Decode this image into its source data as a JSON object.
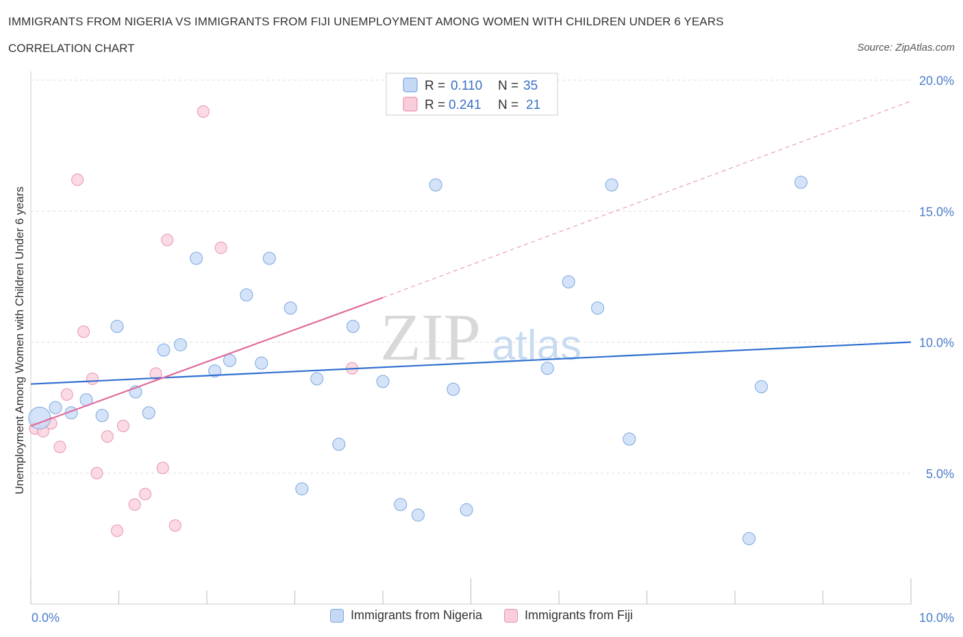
{
  "header": {
    "title": "IMMIGRANTS FROM NIGERIA VS IMMIGRANTS FROM FIJI UNEMPLOYMENT AMONG WOMEN WITH CHILDREN UNDER 6 YEARS",
    "subtitle": "CORRELATION CHART",
    "source": "Source: ZipAtlas.com"
  },
  "watermark": {
    "zip": "ZIP",
    "atlas": "atlas"
  },
  "legend_box": {
    "rows": [
      {
        "r_label": "R =",
        "r_value": "0.110",
        "n_label": "N =",
        "n_value": "35"
      },
      {
        "r_label": "R =",
        "r_value": "0.241",
        "n_label": "N =",
        "n_value": "21"
      }
    ]
  },
  "bottom_legend": {
    "items": [
      {
        "label": "Immigrants from Nigeria"
      },
      {
        "label": "Immigrants from Fiji"
      }
    ]
  },
  "colors": {
    "nigeria_fill": "#c5d9f5",
    "nigeria_stroke": "#7aa6e0",
    "nigeria_line": "#2f6fd0",
    "fiji_fill": "#f9cdd9",
    "fiji_stroke": "#e894ae",
    "fiji_line": "#e0699a",
    "grid": "#dddddd",
    "tick_text": "#4a7cc9"
  },
  "chart_data": {
    "type": "scatter",
    "title": "IMMIGRANTS FROM NIGERIA VS IMMIGRANTS FROM FIJI UNEMPLOYMENT AMONG WOMEN WITH CHILDREN UNDER 6 YEARS",
    "subtitle": "CORRELATION CHART",
    "xlabel": "",
    "ylabel": "Unemployment Among Women with Children Under 6 years",
    "xlim": [
      0,
      10
    ],
    "ylim": [
      0,
      20
    ],
    "x_tick_labels": [
      "0.0%",
      "10.0%"
    ],
    "y_tick_labels": [
      "5.0%",
      "10.0%",
      "15.0%",
      "20.0%"
    ],
    "y_tick_values": [
      5,
      10,
      15,
      20
    ],
    "grid": true,
    "legend_position": "top-center",
    "series": [
      {
        "name": "Immigrants from Nigeria",
        "color": "#7aa6e0",
        "R": 0.11,
        "N": 35,
        "trend": {
          "x": [
            0,
            10
          ],
          "y": [
            8.4,
            10.0
          ]
        },
        "points": [
          {
            "x": 0.1,
            "y": 7.1,
            "big": true
          },
          {
            "x": 0.28,
            "y": 7.5
          },
          {
            "x": 0.46,
            "y": 7.3
          },
          {
            "x": 0.63,
            "y": 7.8
          },
          {
            "x": 0.81,
            "y": 7.2
          },
          {
            "x": 0.98,
            "y": 10.6
          },
          {
            "x": 1.19,
            "y": 8.1
          },
          {
            "x": 1.34,
            "y": 7.3
          },
          {
            "x": 1.51,
            "y": 9.7
          },
          {
            "x": 1.7,
            "y": 9.9
          },
          {
            "x": 1.88,
            "y": 13.2
          },
          {
            "x": 2.09,
            "y": 8.9
          },
          {
            "x": 2.26,
            "y": 9.3
          },
          {
            "x": 2.45,
            "y": 11.8
          },
          {
            "x": 2.62,
            "y": 9.2
          },
          {
            "x": 2.71,
            "y": 13.2
          },
          {
            "x": 2.95,
            "y": 11.3
          },
          {
            "x": 3.08,
            "y": 4.4
          },
          {
            "x": 3.25,
            "y": 8.6
          },
          {
            "x": 3.5,
            "y": 6.1
          },
          {
            "x": 3.66,
            "y": 10.6
          },
          {
            "x": 4.0,
            "y": 8.5
          },
          {
            "x": 4.2,
            "y": 3.8
          },
          {
            "x": 4.4,
            "y": 3.4
          },
          {
            "x": 4.6,
            "y": 16.0
          },
          {
            "x": 4.8,
            "y": 8.2
          },
          {
            "x": 4.95,
            "y": 3.6
          },
          {
            "x": 5.87,
            "y": 9.0
          },
          {
            "x": 6.11,
            "y": 12.3
          },
          {
            "x": 6.44,
            "y": 11.3
          },
          {
            "x": 6.6,
            "y": 16.0
          },
          {
            "x": 6.8,
            "y": 6.3
          },
          {
            "x": 8.16,
            "y": 2.5
          },
          {
            "x": 8.3,
            "y": 8.3
          },
          {
            "x": 8.75,
            "y": 16.1
          }
        ]
      },
      {
        "name": "Immigrants from Fiji",
        "color": "#e894ae",
        "R": 0.241,
        "N": 21,
        "trend": {
          "x": [
            0,
            4.0
          ],
          "y": [
            6.8,
            11.7
          ]
        },
        "trend_extended": {
          "x": [
            4.0,
            10
          ],
          "y": [
            11.7,
            19.2
          ]
        },
        "points": [
          {
            "x": 0.05,
            "y": 6.7
          },
          {
            "x": 0.14,
            "y": 6.6
          },
          {
            "x": 0.23,
            "y": 6.9
          },
          {
            "x": 0.33,
            "y": 6.0
          },
          {
            "x": 0.41,
            "y": 8.0
          },
          {
            "x": 0.53,
            "y": 16.2
          },
          {
            "x": 0.6,
            "y": 10.4
          },
          {
            "x": 0.7,
            "y": 8.6
          },
          {
            "x": 0.75,
            "y": 5.0
          },
          {
            "x": 0.87,
            "y": 6.4
          },
          {
            "x": 0.98,
            "y": 2.8
          },
          {
            "x": 1.05,
            "y": 6.8
          },
          {
            "x": 1.18,
            "y": 3.8
          },
          {
            "x": 1.3,
            "y": 4.2
          },
          {
            "x": 1.42,
            "y": 8.8
          },
          {
            "x": 1.5,
            "y": 5.2
          },
          {
            "x": 1.55,
            "y": 13.9
          },
          {
            "x": 1.64,
            "y": 3.0
          },
          {
            "x": 1.96,
            "y": 18.8
          },
          {
            "x": 2.16,
            "y": 13.6
          },
          {
            "x": 3.65,
            "y": 9.0
          }
        ]
      }
    ]
  }
}
